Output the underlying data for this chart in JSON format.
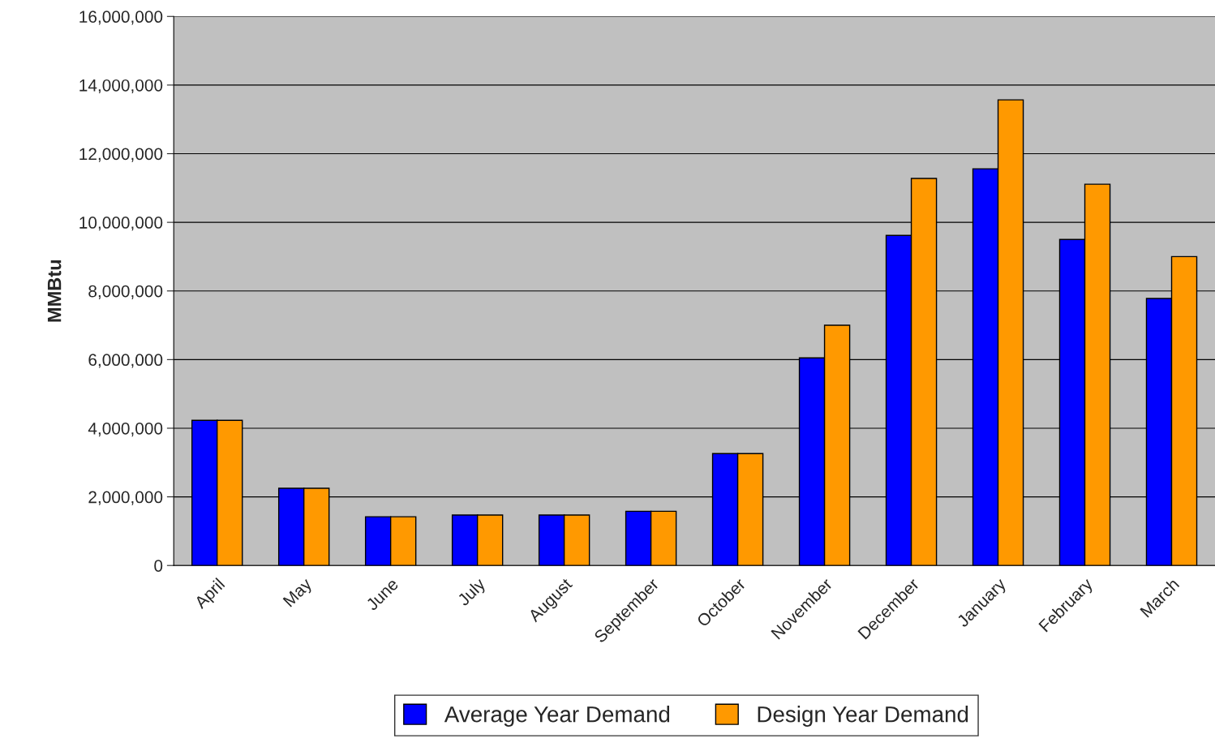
{
  "chart_data": {
    "type": "bar",
    "ylabel": "MMBtu",
    "categories": [
      "April",
      "May",
      "June",
      "July",
      "August",
      "September",
      "October",
      "November",
      "December",
      "January",
      "February",
      "March"
    ],
    "series": [
      {
        "name": "Average Year Demand",
        "color": "#0000ff",
        "values": [
          4230000,
          2250000,
          1420000,
          1470000,
          1470000,
          1580000,
          3260000,
          6050000,
          9620000,
          11560000,
          9500000,
          7780000
        ]
      },
      {
        "name": "Design Year Demand",
        "color": "#ff9900",
        "values": [
          4230000,
          2250000,
          1420000,
          1470000,
          1470000,
          1580000,
          3260000,
          7000000,
          11280000,
          13570000,
          11110000,
          9000000
        ]
      }
    ],
    "ylim": [
      0,
      16000000
    ],
    "yticks": [
      0,
      {
        "value": 2000000,
        "label": "2,000,000"
      },
      {
        "value": 4000000,
        "label": "4,000,000"
      },
      {
        "value": 6000000,
        "label": "6,000,000"
      },
      {
        "value": 8000000,
        "label": "8,000,000"
      },
      {
        "value": 10000000,
        "label": "10,000,000"
      },
      {
        "value": 12000000,
        "label": "12,000,000"
      },
      {
        "value": 14000000,
        "label": "14,000,000"
      },
      {
        "value": 16000000,
        "label": "16,000,000"
      }
    ],
    "grid": "y",
    "legend": "bottom"
  }
}
